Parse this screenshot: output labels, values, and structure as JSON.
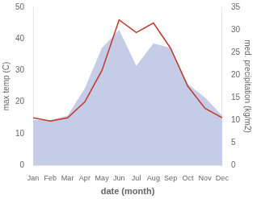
{
  "chart_data": {
    "type": "line",
    "xlabel": "date (month)",
    "ylabel": "max temp (C)",
    "y2label": "med. precipitation (kg/m2)",
    "categories": [
      "Jan",
      "Feb",
      "Mar",
      "Apr",
      "May",
      "Jun",
      "Jul",
      "Aug",
      "Sep",
      "Oct",
      "Nov",
      "Dec"
    ],
    "series": [
      {
        "type": "area",
        "color": "#c5cce8",
        "axis": "y2",
        "values": [
          10,
          10,
          11,
          17,
          26,
          30,
          22,
          27,
          26,
          18,
          15,
          11
        ]
      },
      {
        "type": "line",
        "color": "#c0392b",
        "values": [
          15,
          14,
          15,
          20,
          30,
          46,
          42,
          45,
          37,
          25,
          18,
          15
        ]
      }
    ],
    "ylim": [
      0,
      50
    ],
    "yticks": [
      0,
      10,
      20,
      30,
      40,
      50
    ],
    "y2lim": [
      0,
      35
    ],
    "y2ticks": [
      0,
      5,
      10,
      15,
      20,
      25,
      30,
      35
    ],
    "grid": false
  }
}
